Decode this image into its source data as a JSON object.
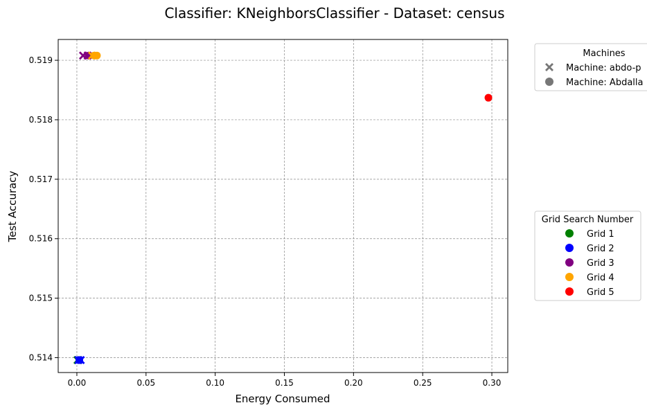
{
  "chart_data": {
    "type": "scatter",
    "title": "Classifier: KNeighborsClassifier - Dataset: census",
    "xlabel": "Energy Consumed",
    "ylabel": "Test Accuracy",
    "xlim": [
      -0.0135,
      0.3115
    ],
    "ylim": [
      0.51375,
      0.51935
    ],
    "xticks": [
      0.0,
      0.05,
      0.1,
      0.15,
      0.2,
      0.25,
      0.3
    ],
    "xtick_labels": [
      "0.00",
      "0.05",
      "0.10",
      "0.15",
      "0.20",
      "0.25",
      "0.30"
    ],
    "yticks": [
      0.514,
      0.515,
      0.516,
      0.517,
      0.518,
      0.519
    ],
    "ytick_labels": [
      "0.514",
      "0.515",
      "0.516",
      "0.517",
      "0.518",
      "0.519"
    ],
    "grid": true,
    "series": [
      {
        "name": "Grid 1",
        "color": "#008000"
      },
      {
        "name": "Grid 2",
        "color": "#0000ff"
      },
      {
        "name": "Grid 3",
        "color": "#800080"
      },
      {
        "name": "Grid 4",
        "color": "#ffa500"
      },
      {
        "name": "Grid 5",
        "color": "#ff0000"
      }
    ],
    "points": [
      {
        "x": 0.0005,
        "y": 0.51396,
        "grid": "Grid 1",
        "marker": "x"
      },
      {
        "x": 0.0012,
        "y": 0.51396,
        "grid": "Grid 2",
        "marker": "x"
      },
      {
        "x": 0.0028,
        "y": 0.51396,
        "grid": "Grid 2",
        "marker": "x"
      },
      {
        "x": 0.0018,
        "y": 0.51396,
        "grid": "Grid 2",
        "marker": "o"
      },
      {
        "x": 0.0045,
        "y": 0.51908,
        "grid": "Grid 3",
        "marker": "x"
      },
      {
        "x": 0.0078,
        "y": 0.51908,
        "grid": "Grid 3",
        "marker": "x"
      },
      {
        "x": 0.0085,
        "y": 0.51908,
        "grid": "Grid 3",
        "marker": "o"
      },
      {
        "x": 0.011,
        "y": 0.51908,
        "grid": "Grid 4",
        "marker": "x"
      },
      {
        "x": 0.0125,
        "y": 0.51908,
        "grid": "Grid 4",
        "marker": "o"
      },
      {
        "x": 0.0145,
        "y": 0.51908,
        "grid": "Grid 4",
        "marker": "o"
      },
      {
        "x": 0.2975,
        "y": 0.51837,
        "grid": "Grid 5",
        "marker": "o"
      }
    ],
    "legend_machines": {
      "title": "Machines",
      "placement": "top-right outside",
      "entries": [
        {
          "label": "Machine: abdo-p",
          "marker": "x",
          "color": "#777777"
        },
        {
          "label": "Machine: Abdalla",
          "marker": "o",
          "color": "#777777"
        }
      ]
    },
    "legend_grid": {
      "title": "Grid Search Number",
      "placement": "center-right outside",
      "entries": [
        {
          "label": "Grid 1",
          "color": "#008000"
        },
        {
          "label": "Grid 2",
          "color": "#0000ff"
        },
        {
          "label": "Grid 3",
          "color": "#800080"
        },
        {
          "label": "Grid 4",
          "color": "#ffa500"
        },
        {
          "label": "Grid 5",
          "color": "#ff0000"
        }
      ]
    }
  }
}
